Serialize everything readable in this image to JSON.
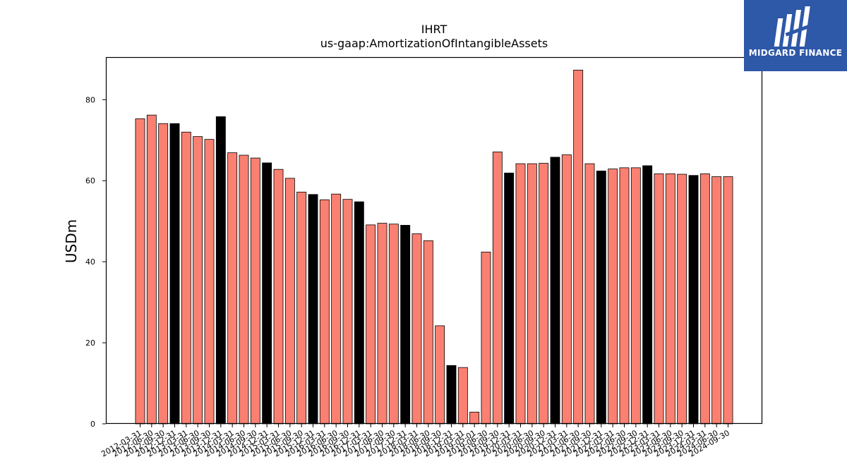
{
  "chart_data": {
    "type": "bar",
    "title": "IHRT",
    "subtitle": "us-gaap:AmortizationOfIntangibleAssets",
    "xlabel": "",
    "ylabel": "USDm",
    "ylim": [
      0,
      90.5
    ],
    "yticks": [
      0,
      20,
      40,
      60,
      80
    ],
    "grid": false,
    "categories": [
      "2012-03-31",
      "2012-06-30",
      "2012-09-30",
      "2012-12-31",
      "2013-03-31",
      "2013-06-30",
      "2013-09-30",
      "2013-12-31",
      "2014-03-31",
      "2014-06-30",
      "2014-09-30",
      "2014-12-31",
      "2015-03-31",
      "2015-06-30",
      "2015-09-30",
      "2015-12-31",
      "2016-03-31",
      "2016-06-30",
      "2016-09-30",
      "2016-12-31",
      "2017-03-31",
      "2017-06-30",
      "2017-09-30",
      "2017-12-31",
      "2018-03-31",
      "2018-06-30",
      "2018-09-30",
      "2018-12-31",
      "2019-03-31",
      "2019-05-01",
      "2019-06-30",
      "2019-09-30",
      "2019-12-31",
      "2020-03-31",
      "2020-06-30",
      "2020-09-30",
      "2020-12-31",
      "2021-03-31",
      "2021-06-30",
      "2021-09-30",
      "2021-12-31",
      "2022-03-31",
      "2022-06-30",
      "2022-09-30",
      "2022-12-31",
      "2023-03-31",
      "2023-06-30",
      "2023-09-30",
      "2023-12-31",
      "2024-03-31",
      "2024-06-30",
      "2024-09-30"
    ],
    "values": [
      75.3,
      76.2,
      74.1,
      74.1,
      72.0,
      70.9,
      70.2,
      75.8,
      66.9,
      66.3,
      65.6,
      64.4,
      62.8,
      60.6,
      57.2,
      56.6,
      55.3,
      56.7,
      55.4,
      54.8,
      49.1,
      49.5,
      49.3,
      49.0,
      46.9,
      45.2,
      24.2,
      14.4,
      13.9,
      2.9,
      42.4,
      67.1,
      61.9,
      64.2,
      64.2,
      64.3,
      65.8,
      66.4,
      87.3,
      64.2,
      62.4,
      62.9,
      63.2,
      63.2,
      63.7,
      61.7,
      61.7,
      61.6,
      61.3,
      61.7,
      61.0,
      61.0
    ],
    "highlight_indices": [
      3,
      7,
      11,
      15,
      19,
      23,
      27,
      32,
      36,
      40,
      44,
      48
    ],
    "colors": {
      "bar": "#fa8072",
      "highlight": "#000000",
      "edge": "#000000"
    }
  },
  "branding": {
    "logo_text": "MIDGARD FINANCE",
    "logo_bg": "#2e58a8"
  }
}
